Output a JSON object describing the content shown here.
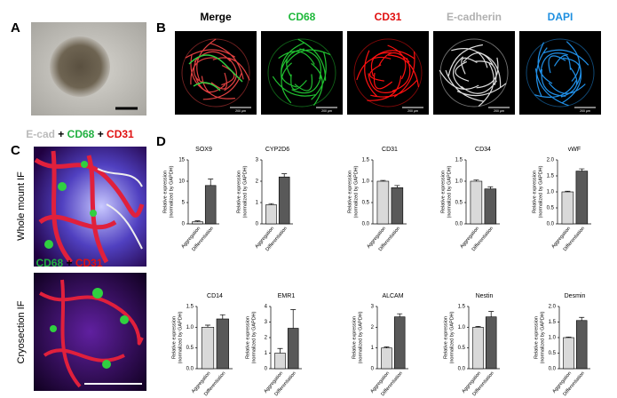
{
  "panels": {
    "a": {
      "label": "A"
    },
    "b": {
      "label": "B",
      "images": [
        {
          "title": "Merge",
          "color": "#000000"
        },
        {
          "title": "CD68",
          "color": "#1db83a"
        },
        {
          "title": "CD31",
          "color": "#e01010"
        },
        {
          "title": "E-cadherin",
          "color": "#b0b0b0"
        },
        {
          "title": "DAPI",
          "color": "#1e8fe0"
        }
      ],
      "scale_bar": "200 µm"
    },
    "c": {
      "label": "C",
      "whole_mount": {
        "stain": [
          "E-cad",
          "+",
          "CD68",
          "+",
          "CD31"
        ],
        "title": "Whole mount IF"
      },
      "cryosection": {
        "stain": [
          "CD68",
          "+",
          "CD31"
        ],
        "title": "Cryosection IF"
      }
    },
    "d": {
      "label": "D"
    }
  },
  "chart_data": [
    {
      "type": "bar",
      "title": "SOX9",
      "categories": [
        "Aggregation",
        "Differentiation"
      ],
      "values": [
        0.5,
        9
      ],
      "errors": [
        0.2,
        1.5
      ],
      "colors": [
        "#d9d9d9",
        "#595959"
      ],
      "ylim": [
        0,
        15
      ],
      "yticks": [
        0,
        5,
        10,
        15
      ],
      "ylabel": [
        "Relative expression",
        "(normalized by GAPDH)"
      ]
    },
    {
      "type": "bar",
      "title": "CYP2D6",
      "categories": [
        "Aggregation",
        "Differentiation"
      ],
      "values": [
        0.9,
        2.2
      ],
      "errors": [
        0.05,
        0.15
      ],
      "colors": [
        "#d9d9d9",
        "#595959"
      ],
      "ylim": [
        0,
        3
      ],
      "yticks": [
        0,
        1,
        2,
        3
      ],
      "ylabel": [
        "Relative expression",
        "(normalized by GAPDH)"
      ]
    },
    {
      "type": "bar",
      "title": "CD31",
      "categories": [
        "Aggregation",
        "Differentiation"
      ],
      "values": [
        1.0,
        0.85
      ],
      "errors": [
        0.02,
        0.05
      ],
      "colors": [
        "#d9d9d9",
        "#595959"
      ],
      "ylim": [
        0,
        1.5
      ],
      "yticks": [
        {
          "value": 0,
          "label": "0.0"
        },
        0.5,
        {
          "value": 1,
          "label": "1.0"
        },
        1.5
      ],
      "ylabel": [
        "Relative expression",
        "(normalized by GAPDH)"
      ]
    },
    {
      "type": "bar",
      "title": "CD34",
      "categories": [
        "Aggregation",
        "Differentiation"
      ],
      "values": [
        1.0,
        0.82
      ],
      "errors": [
        0.03,
        0.05
      ],
      "colors": [
        "#d9d9d9",
        "#595959"
      ],
      "ylim": [
        0,
        1.5
      ],
      "yticks": [
        {
          "value": 0,
          "label": "0.0"
        },
        0.5,
        {
          "value": 1,
          "label": "1.0"
        },
        1.5
      ],
      "ylabel": [
        "Relative expression",
        "(normalized by GAPDH)"
      ]
    },
    {
      "type": "bar",
      "title": "vWF",
      "categories": [
        "Aggregation",
        "Differentiation"
      ],
      "values": [
        1.0,
        1.65
      ],
      "errors": [
        0.02,
        0.07
      ],
      "colors": [
        "#d9d9d9",
        "#595959"
      ],
      "ylim": [
        0,
        2
      ],
      "yticks": [
        {
          "value": 0,
          "label": "0.0"
        },
        0.5,
        {
          "value": 1,
          "label": "1.0"
        },
        1.5,
        {
          "value": 2,
          "label": "2.0"
        }
      ],
      "ylabel": [
        "Relative expression",
        "(normalized by GAPDH)"
      ]
    },
    {
      "type": "bar",
      "title": "CD14",
      "categories": [
        "Aggregation",
        "Differentiation"
      ],
      "values": [
        1.0,
        1.2
      ],
      "errors": [
        0.05,
        0.1
      ],
      "colors": [
        "#d9d9d9",
        "#595959"
      ],
      "ylim": [
        0,
        1.5
      ],
      "yticks": [
        {
          "value": 0,
          "label": "0.0"
        },
        0.5,
        {
          "value": 1,
          "label": "1.0"
        },
        1.5
      ],
      "ylabel": [
        "Relative expression",
        "(normalized by GAPDH)"
      ]
    },
    {
      "type": "bar",
      "title": "EMR1",
      "categories": [
        "Aggregation",
        "Differentiation"
      ],
      "values": [
        1.0,
        2.6
      ],
      "errors": [
        0.3,
        1.2
      ],
      "colors": [
        "#d9d9d9",
        "#595959"
      ],
      "ylim": [
        0,
        4
      ],
      "yticks": [
        0,
        1,
        2,
        3,
        4
      ],
      "ylabel": [
        "Relative expression",
        "(normalized by GAPDH)"
      ]
    },
    {
      "type": "bar",
      "title": "ALCAM",
      "categories": [
        "Aggregation",
        "Differentiation"
      ],
      "values": [
        1.0,
        2.5
      ],
      "errors": [
        0.05,
        0.15
      ],
      "colors": [
        "#d9d9d9",
        "#595959"
      ],
      "ylim": [
        0,
        3
      ],
      "yticks": [
        0,
        1,
        2,
        3
      ],
      "ylabel": [
        "Relative expression",
        "(normalized by GAPDH)"
      ]
    },
    {
      "type": "bar",
      "title": "Nestin",
      "categories": [
        "Aggregation",
        "Differentiation"
      ],
      "values": [
        1.0,
        1.25
      ],
      "errors": [
        0.02,
        0.13
      ],
      "colors": [
        "#d9d9d9",
        "#595959"
      ],
      "ylim": [
        0,
        1.5
      ],
      "yticks": [
        {
          "value": 0,
          "label": "0.0"
        },
        0.5,
        {
          "value": 1,
          "label": "1.0"
        },
        1.5
      ],
      "ylabel": [
        "Relative expression",
        "(normalized by GAPDH)"
      ]
    },
    {
      "type": "bar",
      "title": "Desmin",
      "categories": [
        "Aggregation",
        "Differentiation"
      ],
      "values": [
        1.0,
        1.55
      ],
      "errors": [
        0.02,
        0.1
      ],
      "colors": [
        "#d9d9d9",
        "#595959"
      ],
      "ylim": [
        0,
        2
      ],
      "yticks": [
        {
          "value": 0,
          "label": "0.0"
        },
        0.5,
        {
          "value": 1,
          "label": "1.0"
        },
        1.5,
        {
          "value": 2,
          "label": "2.0"
        }
      ],
      "ylabel": [
        "Relative expression",
        "(normalized by GAPDH)"
      ]
    }
  ]
}
